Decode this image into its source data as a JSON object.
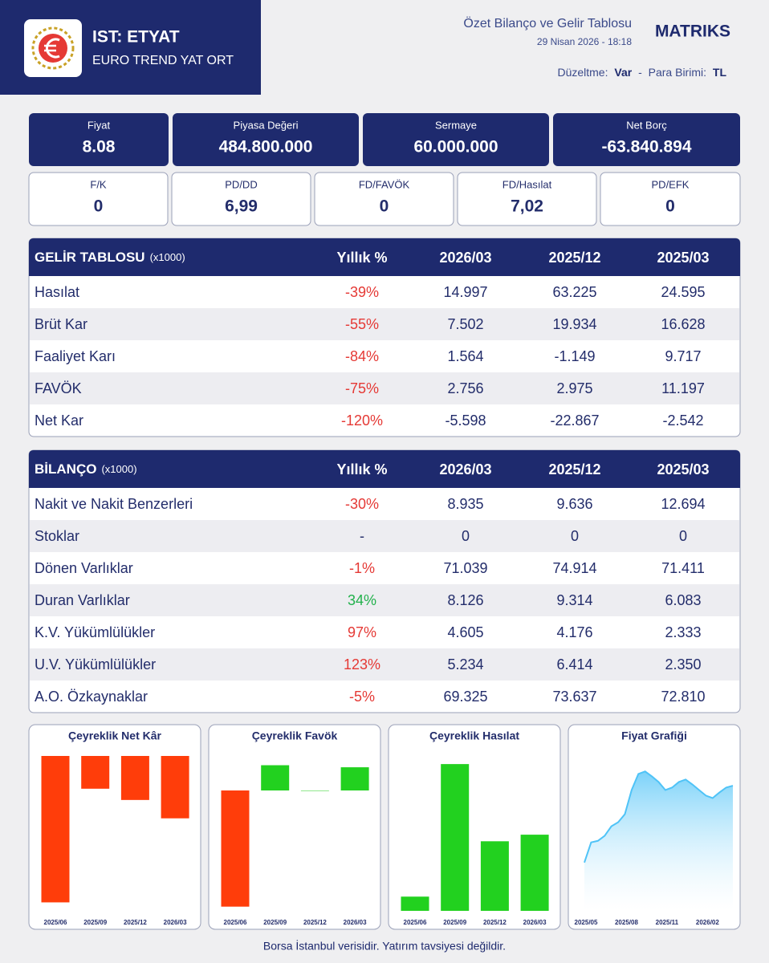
{
  "header": {
    "ticker": "IST: ETYAT",
    "name": "EURO TREND YAT ORT",
    "report_title": "Özet Bilanço ve Gelir Tablosu",
    "date": "29 Nisan 2026 - 18:18",
    "brand": "MATRIKS",
    "adjustment_label": "Düzeltme:",
    "adjustment": "Var",
    "separator": "-",
    "currency_label": "Para Birimi:",
    "currency": "TL"
  },
  "metrics": [
    {
      "label": "Fiyat",
      "value": "8.08"
    },
    {
      "label": "Piyasa Değeri",
      "value": "484.800.000"
    },
    {
      "label": "Sermaye",
      "value": "60.000.000"
    },
    {
      "label": "Net Borç",
      "value": "-63.840.894"
    }
  ],
  "ratios": [
    {
      "label": "F/K",
      "value": "0"
    },
    {
      "label": "PD/DD",
      "value": "6,99"
    },
    {
      "label": "FD/FAVÖK",
      "value": "0"
    },
    {
      "label": "FD/Hasılat",
      "value": "7,02"
    },
    {
      "label": "PD/EFK",
      "value": "0"
    }
  ],
  "income_table": {
    "title": "GELİR TABLOSU",
    "unit": "(x1000)",
    "headers": [
      "Yıllık %",
      "2026/03",
      "2025/12",
      "2025/03"
    ],
    "rows": [
      [
        "Hasılat",
        "-39%",
        "14.997",
        "63.225",
        "24.595"
      ],
      [
        "Brüt Kar",
        "-55%",
        "7.502",
        "19.934",
        "16.628"
      ],
      [
        "Faaliyet Karı",
        "-84%",
        "1.564",
        "-1.149",
        "9.717"
      ],
      [
        "FAVÖK",
        "-75%",
        "2.756",
        "2.975",
        "11.197"
      ],
      [
        "Net Kar",
        "-120%",
        "-5.598",
        "-22.867",
        "-2.542"
      ]
    ],
    "pct_colors": [
      "#e53935",
      "#e53935",
      "#e53935",
      "#e53935",
      "#e53935"
    ]
  },
  "balance_table": {
    "title": "BİLANÇO",
    "unit": "(x1000)",
    "headers": [
      "Yıllık %",
      "2026/03",
      "2025/12",
      "2025/03"
    ],
    "rows": [
      [
        "Nakit ve Nakit Benzerleri",
        "-30%",
        "8.935",
        "9.636",
        "12.694"
      ],
      [
        "Stoklar",
        "-",
        "0",
        "0",
        "0"
      ],
      [
        "Dönen Varlıklar",
        "-1%",
        "71.039",
        "74.914",
        "71.411"
      ],
      [
        "Duran Varlıklar",
        "34%",
        "8.126",
        "9.314",
        "6.083"
      ],
      [
        "K.V. Yükümlülükler",
        "97%",
        "4.605",
        "4.176",
        "2.333"
      ],
      [
        "U.V. Yükümlülükler",
        "123%",
        "5.234",
        "6.414",
        "2.350"
      ],
      [
        "A.O. Özkaynaklar",
        "-5%",
        "69.325",
        "73.637",
        "72.810"
      ]
    ],
    "pct_colors": [
      "#e53935",
      "#232d6b",
      "#e53935",
      "#22b14c",
      "#e53935",
      "#e53935",
      "#e53935"
    ]
  },
  "chart_data": [
    {
      "type": "bar",
      "title": "Çeyreklik Net Kâr",
      "categories": [
        "2025/06",
        "2025/09",
        "2025/12",
        "2026/03"
      ],
      "values": [
        -13140,
        -2940,
        -3950,
        -5598
      ],
      "ylim": [
        -13900,
        0
      ],
      "color_positive": "#22d11f",
      "color_negative": "#ff3d0a"
    },
    {
      "type": "bar",
      "title": "Çeyreklik Favök",
      "categories": [
        "2025/06",
        "2025/09",
        "2025/12",
        "2026/03"
      ],
      "values": [
        -13800,
        3000,
        0,
        2756
      ],
      "ylim": [
        -14300,
        4100
      ],
      "color_positive": "#22d11f",
      "color_negative": "#ff3d0a"
    },
    {
      "type": "bar",
      "title": "Çeyreklik Hasılat",
      "categories": [
        "2025/06",
        "2025/09",
        "2025/12",
        "2026/03"
      ],
      "values": [
        2800,
        28900,
        13700,
        14997
      ],
      "ylim": [
        0,
        30500
      ],
      "color_positive": "#22d11f",
      "color_negative": "#ff3d0a"
    },
    {
      "type": "area",
      "title": "Fiyat Grafiği",
      "categories": [
        "2025/05",
        null,
        null,
        null,
        null,
        null,
        "2025/08",
        null,
        null,
        null,
        null,
        null,
        "2025/11",
        null,
        null,
        null,
        null,
        null,
        "2026/02",
        null,
        null,
        null,
        null
      ],
      "values": [
        3.12,
        4.42,
        4.52,
        4.84,
        5.46,
        5.72,
        6.24,
        7.8,
        8.84,
        9.0,
        8.68,
        8.32,
        7.8,
        7.96,
        8.32,
        8.48,
        8.16,
        7.8,
        7.44,
        7.28,
        7.64,
        7.96,
        8.08
      ],
      "ylim": [
        0,
        10
      ],
      "color": "#4fc3f7"
    }
  ],
  "footer": "Borsa İstanbul verisidir. Yatırım tavsiyesi değildir."
}
